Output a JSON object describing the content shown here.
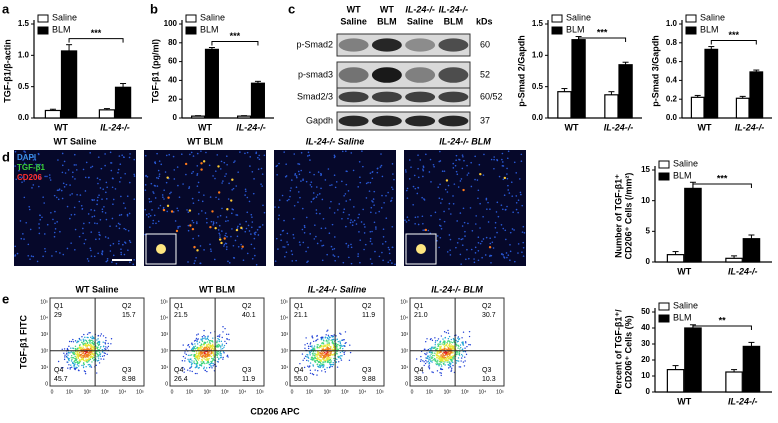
{
  "panels": [
    "a",
    "b",
    "c",
    "d",
    "e"
  ],
  "chart_data": [
    {
      "type": "bar",
      "ylabel": [
        "TGF-β1/β-actin"
      ],
      "categories": [
        "WT",
        "IL-24-/-"
      ],
      "series": [
        {
          "name": "Saline",
          "color": "#ffffff",
          "values": [
            0.12,
            0.13
          ],
          "errors": [
            0.02,
            0.02
          ]
        },
        {
          "name": "BLM",
          "color": "#000000",
          "values": [
            1.07,
            0.49
          ],
          "errors": [
            0.1,
            0.06
          ]
        }
      ],
      "ylim": [
        0,
        1.5
      ],
      "yticks": [
        {
          "value": 0,
          "label": "0.0"
        },
        0.5,
        {
          "value": 1,
          "label": "1.0"
        },
        1.5
      ],
      "annotation": "***"
    },
    {
      "type": "bar",
      "ylabel": [
        "TGF-β1 (pg/ml)"
      ],
      "categories": [
        "WT",
        "IL-24-/-"
      ],
      "series": [
        {
          "name": "Saline",
          "color": "#ffffff",
          "values": [
            2,
            2
          ],
          "errors": [
            0.5,
            0.5
          ]
        },
        {
          "name": "BLM",
          "color": "#000000",
          "values": [
            73,
            37
          ],
          "errors": [
            2,
            2
          ]
        }
      ],
      "ylim": [
        0,
        100
      ],
      "yticks": [
        0,
        20,
        40,
        60,
        80,
        100
      ],
      "annotation": "***"
    },
    {
      "type": "bar",
      "ylabel": [
        "p-Smad 2/Gapdh"
      ],
      "categories": [
        "WT",
        "IL-24-/-"
      ],
      "series": [
        {
          "name": "Saline",
          "color": "#ffffff",
          "values": [
            0.42,
            0.37
          ],
          "errors": [
            0.05,
            0.05
          ]
        },
        {
          "name": "BLM",
          "color": "#000000",
          "values": [
            1.25,
            0.85
          ],
          "errors": [
            0.05,
            0.04
          ]
        }
      ],
      "ylim": [
        0,
        1.5
      ],
      "yticks": [
        {
          "value": 0,
          "label": "0.0"
        },
        0.5,
        {
          "value": 1,
          "label": "1.0"
        },
        1.5
      ],
      "annotation": "***"
    },
    {
      "type": "bar",
      "ylabel": [
        "p-Smad 3/Gapdh"
      ],
      "categories": [
        "WT",
        "IL-24-/-"
      ],
      "series": [
        {
          "name": "Saline",
          "color": "#ffffff",
          "values": [
            0.22,
            0.21
          ],
          "errors": [
            0.02,
            0.02
          ]
        },
        {
          "name": "BLM",
          "color": "#000000",
          "values": [
            0.73,
            0.49
          ],
          "errors": [
            0.03,
            0.02
          ]
        }
      ],
      "ylim": [
        0,
        1
      ],
      "yticks": [
        {
          "value": 0,
          "label": "0.0"
        },
        0.2,
        0.4,
        0.6,
        0.8,
        {
          "value": 1,
          "label": "1.0"
        }
      ],
      "annotation": "***"
    },
    {
      "type": "bar",
      "ylabel": [
        "Number of TGF-β1⁺",
        "CD206⁺ Cells (/mm²)"
      ],
      "categories": [
        "WT",
        "IL-24-/-"
      ],
      "series": [
        {
          "name": "Saline",
          "color": "#ffffff",
          "values": [
            1.2,
            0.6
          ],
          "errors": [
            0.5,
            0.4
          ]
        },
        {
          "name": "BLM",
          "color": "#000000",
          "values": [
            12,
            3.8
          ],
          "errors": [
            1,
            0.6
          ]
        }
      ],
      "ylim": [
        0,
        15
      ],
      "yticks": [
        0,
        5,
        10,
        15
      ],
      "annotation": "***"
    },
    {
      "type": "bar",
      "ylabel": [
        "Percent of TGF-β1⁺/",
        "CD206⁺ Cells (%)"
      ],
      "categories": [
        "WT",
        "IL-24-/-"
      ],
      "series": [
        {
          "name": "Saline",
          "color": "#ffffff",
          "values": [
            14,
            12.5
          ],
          "errors": [
            2.5,
            1.5
          ]
        },
        {
          "name": "BLM",
          "color": "#000000",
          "values": [
            40,
            28.5
          ],
          "errors": [
            2,
            2.5
          ]
        }
      ],
      "ylim": [
        0,
        50
      ],
      "yticks": [
        0,
        10,
        20,
        30,
        40,
        50
      ],
      "annotation": "**"
    }
  ],
  "blot": {
    "columns": [
      [
        "WT",
        "Saline"
      ],
      [
        "WT",
        "BLM"
      ],
      [
        "IL-24-/-",
        "Saline"
      ],
      [
        "IL-24-/-",
        "BLM"
      ]
    ],
    "unit": "kDs",
    "rows": [
      {
        "label": "p-Smad2",
        "kd": "60"
      },
      {
        "label": "p-smad3",
        "kd": "52"
      },
      {
        "label": "Smad2/3",
        "kd": "60/52"
      },
      {
        "label": "Gapdh",
        "kd": "37"
      }
    ]
  },
  "micrographs": {
    "titles": [
      "WT Saline",
      "WT BLM",
      "IL-24-/- Saline",
      "IL-24-/- BLM"
    ],
    "channels": [
      {
        "name": "DAPI",
        "color": "#3d8fe6"
      },
      {
        "name": "TGF-β1",
        "color": "#39d13b"
      },
      {
        "name": "CD206",
        "color": "#ff3030"
      }
    ]
  },
  "flow": {
    "ylabel": "TGF-β1 FITC",
    "xlabel": "CD206 APC",
    "axis_ticks": [
      "0",
      "10¹",
      "10²",
      "10³",
      "10⁴",
      "10⁵"
    ],
    "plots": [
      {
        "title": "WT Saline",
        "quadrants": [
          {
            "name": "Q1",
            "value": "29"
          },
          {
            "name": "Q2",
            "value": "15.7"
          },
          {
            "name": "Q3",
            "value": "8.98"
          },
          {
            "name": "Q4",
            "value": "45.7"
          }
        ]
      },
      {
        "title": "WT BLM",
        "quadrants": [
          {
            "name": "Q1",
            "value": "21.5"
          },
          {
            "name": "Q2",
            "value": "40.1"
          },
          {
            "name": "Q3",
            "value": "11.9"
          },
          {
            "name": "Q4",
            "value": "26.4"
          }
        ]
      },
      {
        "title": "IL-24-/- Saline",
        "quadrants": [
          {
            "name": "Q1",
            "value": "21.1"
          },
          {
            "name": "Q2",
            "value": "11.9"
          },
          {
            "name": "Q3",
            "value": "9.88"
          },
          {
            "name": "Q4",
            "value": "55.0"
          }
        ]
      },
      {
        "title": "IL-24-/- BLM",
        "quadrants": [
          {
            "name": "Q1",
            "value": "21.0"
          },
          {
            "name": "Q2",
            "value": "30.7"
          },
          {
            "name": "Q3",
            "value": "10.3"
          },
          {
            "name": "Q4",
            "value": "38.0"
          }
        ]
      }
    ]
  }
}
